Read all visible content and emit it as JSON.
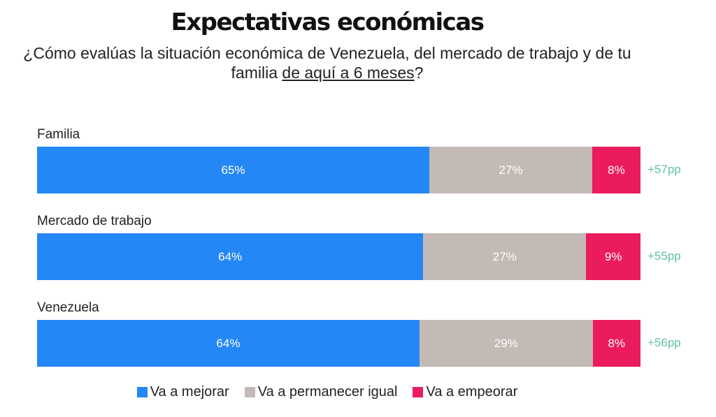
{
  "chart_data": {
    "type": "bar",
    "orientation": "horizontal",
    "stacked": true,
    "title": "Expectativas económicas",
    "subtitle": "¿Cómo evalúas la situación económica de Venezuela, del mercado de trabajo y de tu familia",
    "subtitle_underlined": "de aquí a 6 meses",
    "subtitle_end": "?",
    "categories": [
      "Familia",
      "Mercado de trabajo",
      "Venezuela"
    ],
    "series": [
      {
        "name": "Va a mejorar",
        "color": "#2388f5",
        "values": [
          65,
          64,
          64
        ],
        "labels": [
          "65%",
          "64%",
          "64%"
        ]
      },
      {
        "name": "Va a permanecer igual",
        "color": "#c3b9b5",
        "values": [
          27,
          27,
          29
        ],
        "labels": [
          "27%",
          "27%",
          "29%"
        ]
      },
      {
        "name": "Va a empeorar",
        "color": "#ea1c5d",
        "values": [
          8,
          9,
          8
        ],
        "labels": [
          "8%",
          "9%",
          "8%"
        ]
      }
    ],
    "net_labels": [
      "+57pp",
      "+55pp",
      "+56pp"
    ],
    "net_color": "#5fc2a5",
    "legend_position": "bottom",
    "grid": false
  }
}
